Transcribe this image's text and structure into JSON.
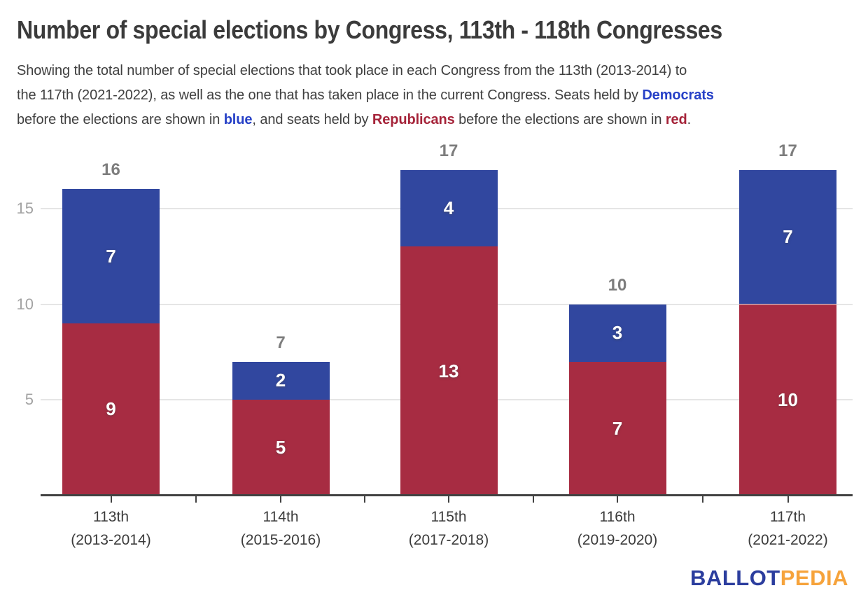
{
  "header": {
    "title": "Number of special elections by Congress, 113th - 118th Congresses"
  },
  "subtitle": {
    "lines": [
      [
        {
          "t": "Showing the total number of special elections that took place in each Congress from the 113th (2013-2014) to"
        }
      ],
      [
        {
          "t": "the 117th (2021-2022), as well as the one that has taken place in the current Congress. Seats held by "
        },
        {
          "t": "Democrats",
          "c": "blue"
        }
      ],
      [
        {
          "t": "before the elections are shown in "
        },
        {
          "t": "blue",
          "c": "blue"
        },
        {
          "t": ", and seats held by "
        },
        {
          "t": "Republicans",
          "c": "red"
        },
        {
          "t": " before the elections are shown in "
        },
        {
          "t": "red",
          "c": "red"
        },
        {
          "t": "."
        }
      ]
    ]
  },
  "chart_data": {
    "type": "bar",
    "stacked": true,
    "title": "Number of special elections by Congress, 113th - 118th Congresses",
    "categories": [
      "113th",
      "114th",
      "115th",
      "116th",
      "117th"
    ],
    "category_sublabels": [
      "(2013-2014)",
      "(2015-2016)",
      "(2017-2018)",
      "(2019-2020)",
      "(2021-2022)"
    ],
    "series": [
      {
        "name": "Republicans",
        "color": "#a72c42",
        "values": [
          9,
          5,
          13,
          7,
          10
        ]
      },
      {
        "name": "Democrats",
        "color": "#31479f",
        "values": [
          7,
          2,
          4,
          3,
          7
        ]
      }
    ],
    "totals": [
      16,
      7,
      17,
      10,
      17
    ],
    "xlabel": "",
    "ylabel": "",
    "yticks": [
      5,
      10,
      15
    ],
    "ylim": [
      0,
      17.5
    ],
    "grid": true,
    "legend_position": "none"
  },
  "colors": {
    "republican_red": "#a72c42",
    "democrat_blue": "#31479f",
    "text_blue": "#2640c7",
    "text_red": "#a52339",
    "grid_gray": "#e5e5e5",
    "axis_gray": "#424242",
    "total_label_gray": "#7d7d7d",
    "ytick_gray": "#a3a3a3",
    "logo_blue": "#2b3d9e",
    "logo_orange": "#f6a33b"
  },
  "logo": {
    "part1": "BALLOT",
    "part2": "PEDIA"
  }
}
